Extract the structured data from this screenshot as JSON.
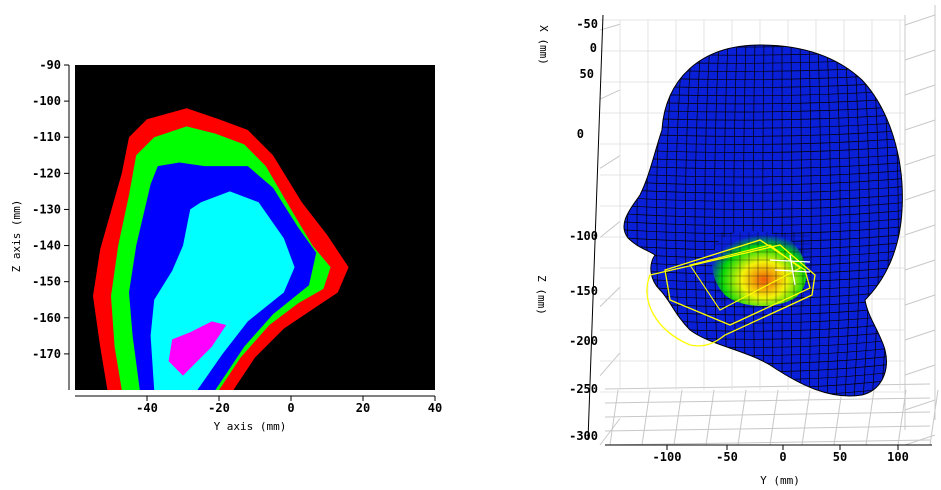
{
  "chart_data": [
    {
      "type": "heatmap",
      "title": "",
      "xlabel": "Y axis (mm)",
      "ylabel": "Z axis (mm)",
      "xlim": [
        -60,
        40
      ],
      "ylim": [
        -180,
        -90
      ],
      "x_ticks": [
        -40,
        -20,
        0,
        20,
        40
      ],
      "y_ticks": [
        -90,
        -100,
        -110,
        -120,
        -130,
        -140,
        -150,
        -160,
        -170
      ],
      "grid": false,
      "background_color": "#000000",
      "contour_levels": [
        {
          "color": "#ff0000",
          "polygon": [
            [
              -51,
              -180
            ],
            [
              -53,
              -168
            ],
            [
              -55,
              -154
            ],
            [
              -53,
              -141
            ],
            [
              -47,
              -120
            ],
            [
              -45,
              -110
            ],
            [
              -40,
              -105
            ],
            [
              -29,
              -102
            ],
            [
              -20,
              -105
            ],
            [
              -12,
              -108
            ],
            [
              -5,
              -115
            ],
            [
              3,
              -128
            ],
            [
              10,
              -137
            ],
            [
              16,
              -146
            ],
            [
              13,
              -153
            ],
            [
              7,
              -157
            ],
            [
              -2,
              -163
            ],
            [
              -10,
              -171
            ],
            [
              -16,
              -180
            ]
          ]
        },
        {
          "color": "#00ff00",
          "polygon": [
            [
              -47,
              -180
            ],
            [
              -49,
              -168
            ],
            [
              -50,
              -154
            ],
            [
              -48,
              -140
            ],
            [
              -45,
              -126
            ],
            [
              -43,
              -115
            ],
            [
              -38,
              -110
            ],
            [
              -29,
              -107
            ],
            [
              -21,
              -109
            ],
            [
              -13,
              -112
            ],
            [
              -7,
              -118
            ],
            [
              0,
              -130
            ],
            [
              6,
              -140
            ],
            [
              11,
              -146
            ],
            [
              9,
              -152
            ],
            [
              2,
              -156
            ],
            [
              -6,
              -162
            ],
            [
              -14,
              -171
            ],
            [
              -20,
              -180
            ]
          ]
        },
        {
          "color": "#0000ff",
          "polygon": [
            [
              -42,
              -180
            ],
            [
              -44,
              -165
            ],
            [
              -45,
              -153
            ],
            [
              -43,
              -140
            ],
            [
              -39,
              -123
            ],
            [
              -37,
              -118
            ],
            [
              -31,
              -117
            ],
            [
              -24,
              -118
            ],
            [
              -12,
              -118
            ],
            [
              -5,
              -124
            ],
            [
              2,
              -135
            ],
            [
              7,
              -142
            ],
            [
              5,
              -151
            ],
            [
              -5,
              -159
            ],
            [
              -13,
              -168
            ],
            [
              -21,
              -180
            ]
          ]
        },
        {
          "color": "#00ffff",
          "polygon": [
            [
              -38,
              -180
            ],
            [
              -39,
              -165
            ],
            [
              -38,
              -155
            ],
            [
              -33,
              -147
            ],
            [
              -30,
              -140
            ],
            [
              -28,
              -130
            ],
            [
              -25,
              -128
            ],
            [
              -17,
              -125
            ],
            [
              -9,
              -128
            ],
            [
              -2,
              -138
            ],
            [
              1,
              -146
            ],
            [
              -2,
              -153
            ],
            [
              -12,
              -161
            ],
            [
              -19,
              -170
            ],
            [
              -26,
              -180
            ]
          ]
        },
        {
          "color": "#ff00ff",
          "polygon": [
            [
              -33,
              -166
            ],
            [
              -28,
              -164
            ],
            [
              -22,
              -161
            ],
            [
              -18,
              -162
            ],
            [
              -22,
              -168
            ],
            [
              -27,
              -173
            ],
            [
              -30,
              -176
            ],
            [
              -34,
              -172
            ]
          ]
        }
      ]
    },
    {
      "type": "surface3d",
      "title": "",
      "xlabel": "Y (mm)",
      "ylabel": "Z (mm)",
      "zlabel": "X (mm)",
      "x_ticks": [
        -100,
        -50,
        0,
        50,
        100
      ],
      "z_ticks": [
        -100,
        -150,
        -200,
        -250,
        -300
      ],
      "depth_ticks": [
        -50,
        0,
        50
      ],
      "extra_tick": "0",
      "grid": true,
      "surface_color": "#0a1fd8",
      "mesh_color": "#000000",
      "highlight_colors": [
        "#00e000",
        "#ffff00",
        "#ff6000"
      ],
      "outline_color": "#ffff00"
    }
  ]
}
